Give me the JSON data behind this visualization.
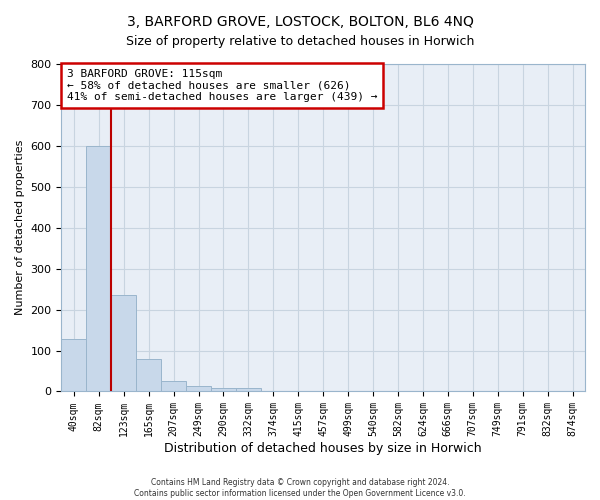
{
  "title1": "3, BARFORD GROVE, LOSTOCK, BOLTON, BL6 4NQ",
  "title2": "Size of property relative to detached houses in Horwich",
  "xlabel": "Distribution of detached houses by size in Horwich",
  "ylabel": "Number of detached properties",
  "bar_labels": [
    "40sqm",
    "82sqm",
    "123sqm",
    "165sqm",
    "207sqm",
    "249sqm",
    "290sqm",
    "332sqm",
    "374sqm",
    "415sqm",
    "457sqm",
    "499sqm",
    "540sqm",
    "582sqm",
    "624sqm",
    "666sqm",
    "707sqm",
    "749sqm",
    "791sqm",
    "832sqm",
    "874sqm"
  ],
  "bar_values": [
    128,
    600,
    236,
    80,
    25,
    13,
    8,
    9,
    0,
    0,
    0,
    0,
    0,
    0,
    0,
    0,
    0,
    0,
    0,
    0,
    0
  ],
  "bar_color": "#c8d8ea",
  "bar_edgecolor": "#9ab5cc",
  "annotation_text": "3 BARFORD GROVE: 115sqm\n← 58% of detached houses are smaller (626)\n41% of semi-detached houses are larger (439) →",
  "annotation_box_edgecolor": "#cc0000",
  "vline_color": "#bb0000",
  "ylim": [
    0,
    800
  ],
  "yticks": [
    0,
    100,
    200,
    300,
    400,
    500,
    600,
    700,
    800
  ],
  "grid_color": "#c8d4e0",
  "bg_color": "#e8eef6",
  "footer1": "Contains HM Land Registry data © Crown copyright and database right 2024.",
  "footer2": "Contains public sector information licensed under the Open Government Licence v3.0."
}
